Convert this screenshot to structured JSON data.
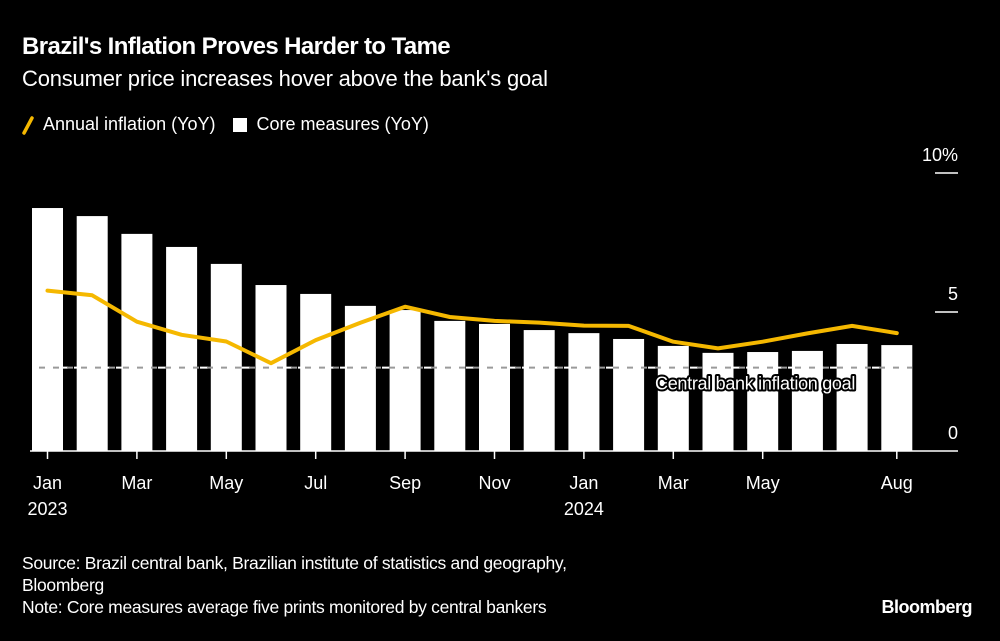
{
  "header": {
    "title": "Brazil's Inflation Proves Harder to Tame",
    "subtitle": "Consumer price increases hover above the bank's goal"
  },
  "legend": {
    "items": [
      {
        "label": "Annual inflation (YoY)",
        "icon": "line-swatch-icon",
        "color": "#f5b800"
      },
      {
        "label": "Core measures (YoY)",
        "icon": "square-swatch-icon",
        "color": "#ffffff"
      }
    ]
  },
  "footer": {
    "source_line1": "Source: Brazil central bank, Brazilian institute of statistics and geography,",
    "source_line2": "Bloomberg",
    "note": "Note: Core measures average five prints monitored by central bankers",
    "brand": "Bloomberg"
  },
  "colors": {
    "background": "#000000",
    "line": "#f5b800",
    "bars": "#ffffff",
    "goal_line": "#aaaaaa",
    "text": "#ffffff"
  },
  "chart_data": {
    "type": "bar",
    "title": "Brazil's Inflation Proves Harder to Tame",
    "subtitle": "Consumer price increases hover above the bank's goal",
    "xlabel": "",
    "ylabel": "",
    "ylim": [
      0,
      10
    ],
    "y_ticks": [
      {
        "value": 0,
        "label": "0"
      },
      {
        "value": 5,
        "label": "5"
      },
      {
        "value": 10,
        "label": "10%"
      }
    ],
    "y_axis_side": "right",
    "grid": false,
    "legend_position": "top-left",
    "categories": [
      "Jan 2023",
      "Feb 2023",
      "Mar 2023",
      "Apr 2023",
      "May 2023",
      "Jun 2023",
      "Jul 2023",
      "Aug 2023",
      "Sep 2023",
      "Oct 2023",
      "Nov 2023",
      "Dec 2023",
      "Jan 2024",
      "Feb 2024",
      "Mar 2024",
      "Apr 2024",
      "May 2024",
      "Jun 2024",
      "Jul 2024",
      "Aug 2024"
    ],
    "x_ticks": [
      {
        "index": 0,
        "label": "Jan",
        "sublabel": "2023"
      },
      {
        "index": 2,
        "label": "Mar",
        "sublabel": ""
      },
      {
        "index": 4,
        "label": "May",
        "sublabel": ""
      },
      {
        "index": 6,
        "label": "Jul",
        "sublabel": ""
      },
      {
        "index": 8,
        "label": "Sep",
        "sublabel": ""
      },
      {
        "index": 10,
        "label": "Nov",
        "sublabel": ""
      },
      {
        "index": 12,
        "label": "Jan",
        "sublabel": "2024"
      },
      {
        "index": 14,
        "label": "Mar",
        "sublabel": ""
      },
      {
        "index": 16,
        "label": "May",
        "sublabel": ""
      },
      {
        "index": 19,
        "label": "Aug",
        "sublabel": ""
      }
    ],
    "series": [
      {
        "name": "Core measures (YoY)",
        "type": "bar",
        "color": "#ffffff",
        "values": [
          8.74,
          8.45,
          7.81,
          7.34,
          6.73,
          5.97,
          5.65,
          5.22,
          5.07,
          4.68,
          4.57,
          4.35,
          4.24,
          4.03,
          3.78,
          3.53,
          3.56,
          3.6,
          3.85,
          3.81
        ]
      },
      {
        "name": "Annual inflation (YoY)",
        "type": "line",
        "color": "#f5b800",
        "values": [
          5.77,
          5.6,
          4.65,
          4.18,
          3.94,
          3.16,
          3.99,
          4.61,
          5.19,
          4.82,
          4.68,
          4.62,
          4.51,
          4.5,
          3.93,
          3.69,
          3.93,
          4.23,
          4.5,
          4.24
        ]
      }
    ],
    "annotations": [
      {
        "type": "hline",
        "value": 3.0,
        "style": "dashed",
        "label": "Central bank inflation goal"
      }
    ]
  }
}
